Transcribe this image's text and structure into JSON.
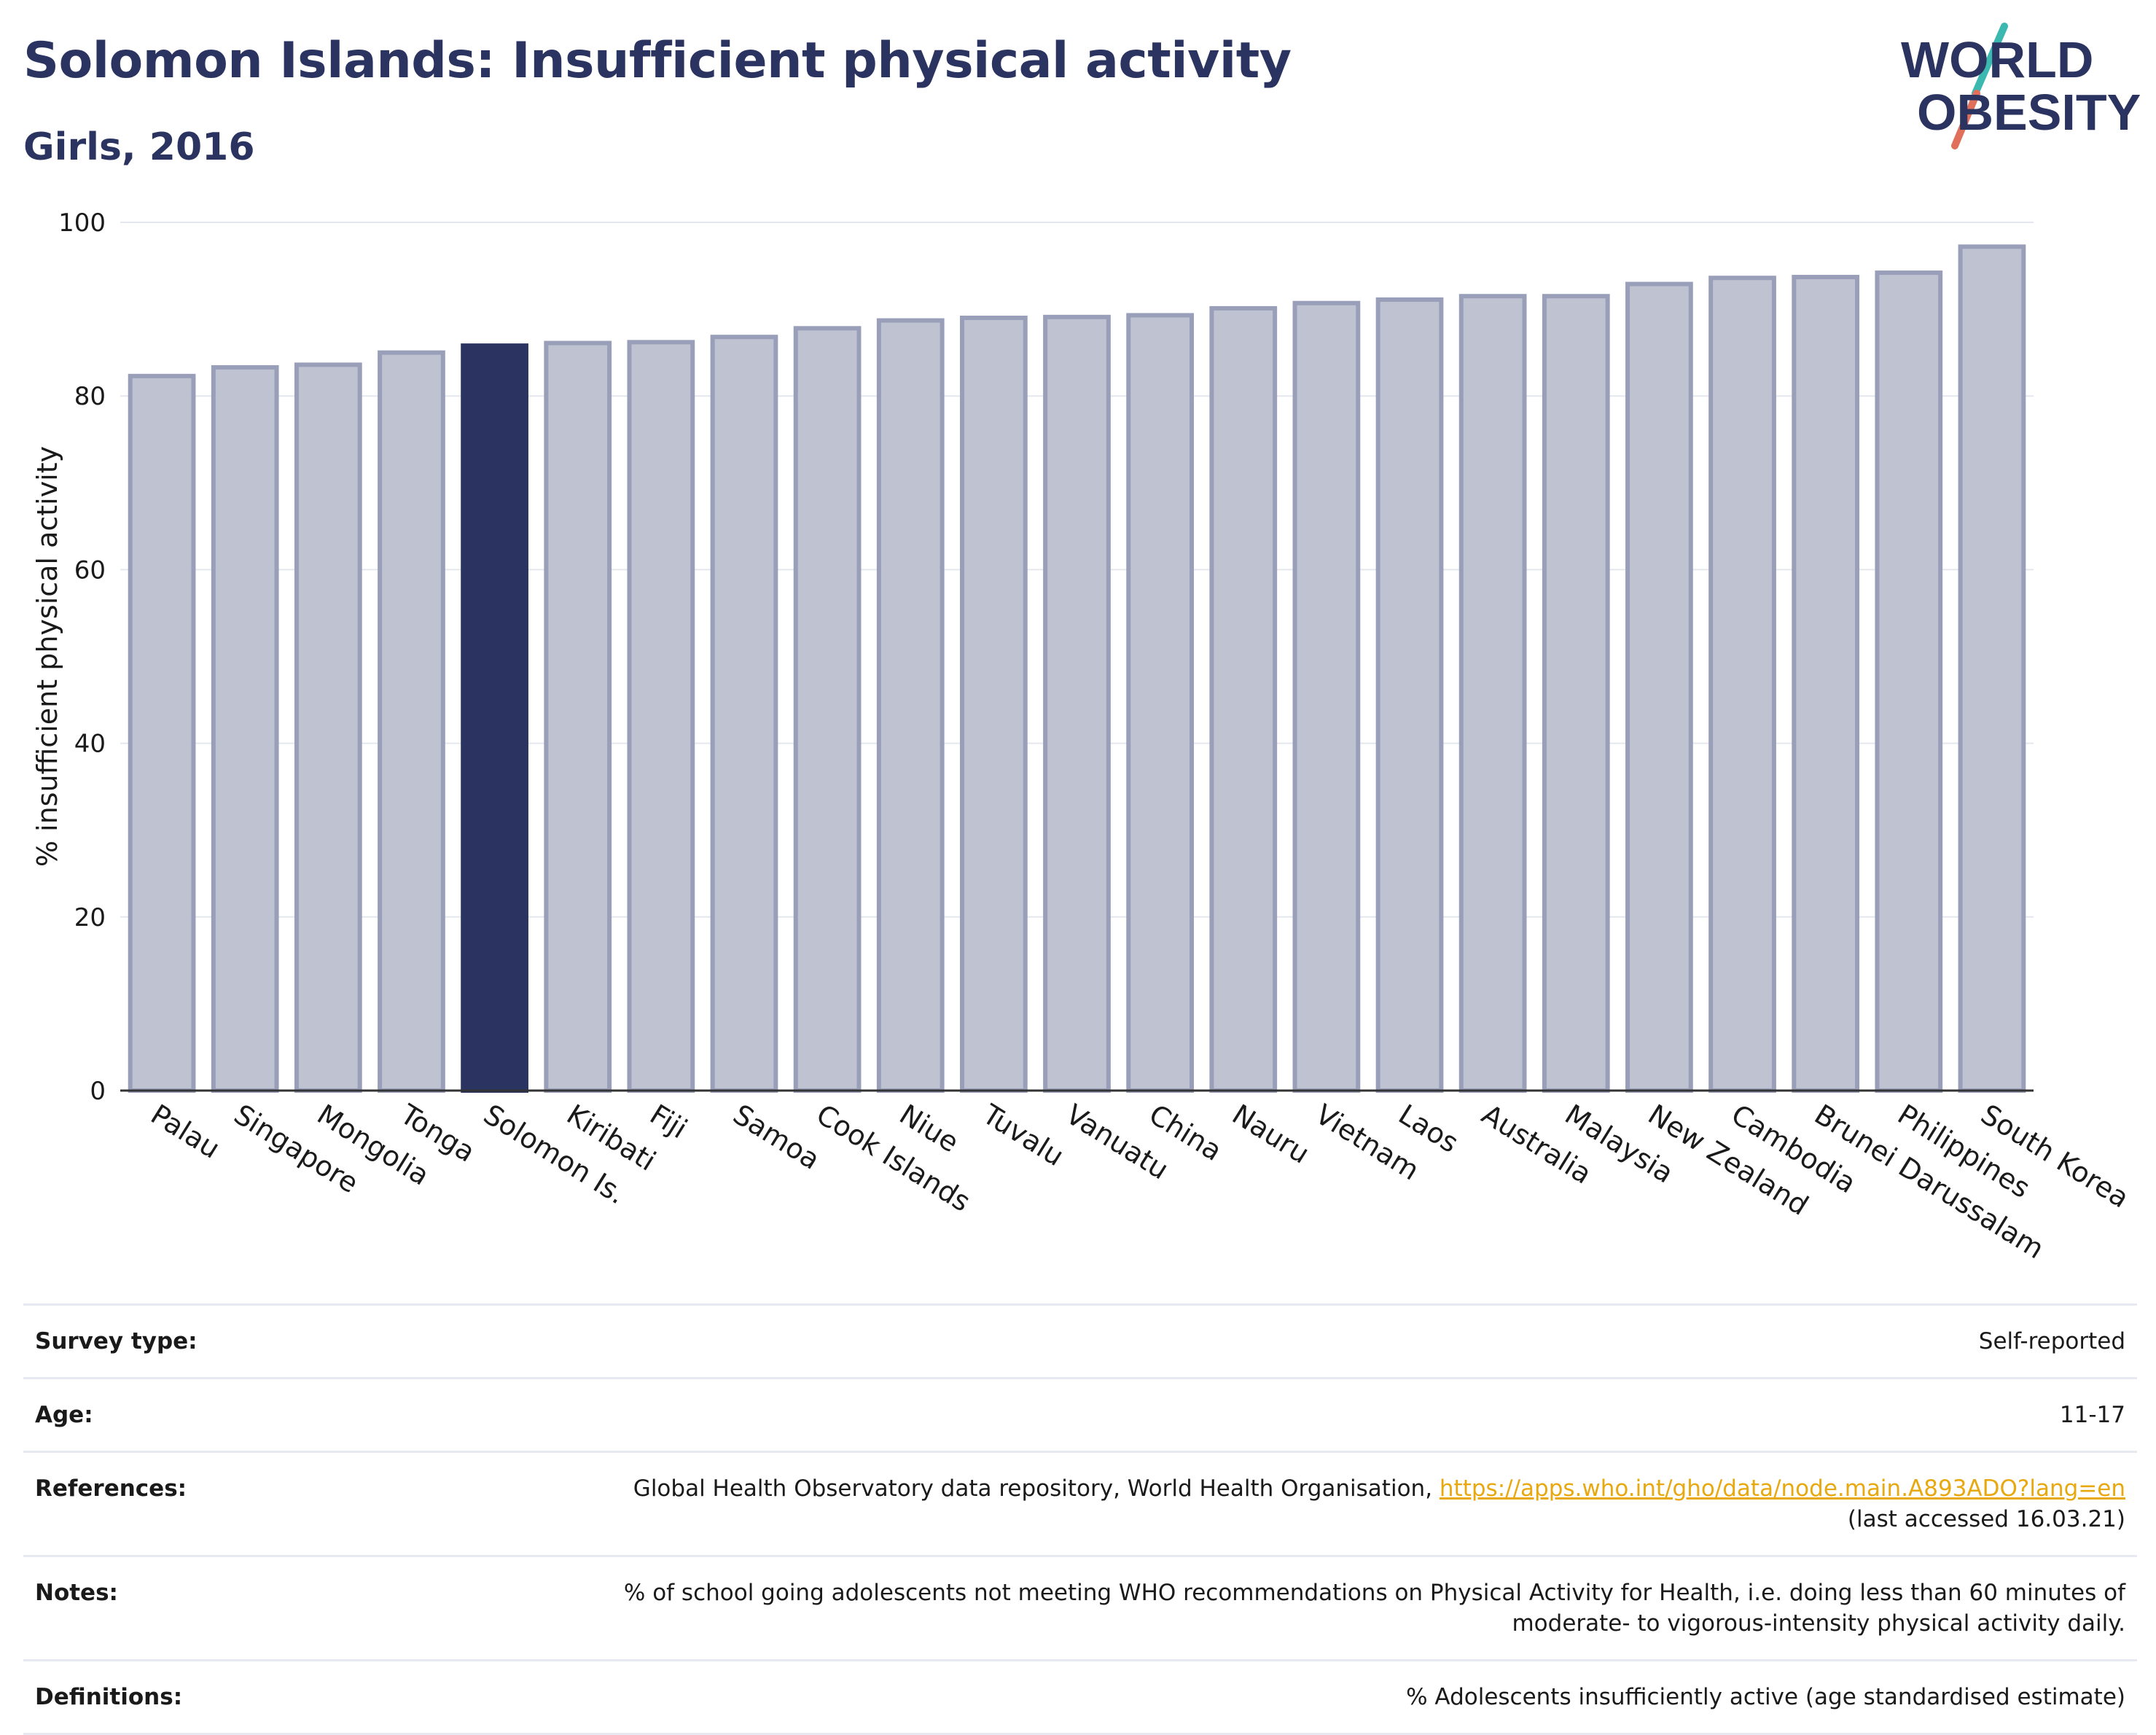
{
  "header": {
    "title": "Solomon Islands: Insufficient physical activity",
    "subtitle": "Girls, 2016"
  },
  "logo": {
    "line1": "WORLD",
    "line2": "OBESITY"
  },
  "colors": {
    "highlight": "#2b3460",
    "bar_fill": "#bfc2d1",
    "bar_stroke": "#9a9fb9",
    "title": "#2b3460",
    "link": "#e8a810"
  },
  "chart_data": {
    "type": "bar",
    "title": "Solomon Islands: Insufficient physical activity",
    "subtitle": "Girls, 2016",
    "xlabel": "",
    "ylabel": "% insufficient physical activity",
    "ylim": [
      0,
      100
    ],
    "yticks": [
      0,
      20,
      40,
      60,
      80,
      100
    ],
    "grid": true,
    "highlight": "Solomon Is.",
    "categories": [
      "Palau",
      "Singapore",
      "Mongolia",
      "Tonga",
      "Solomon Is.",
      "Kiribati",
      "Fiji",
      "Samoa",
      "Cook Islands",
      "Niue",
      "Tuvalu",
      "Vanuatu",
      "China",
      "Nauru",
      "Vietnam",
      "Laos",
      "Australia",
      "Malaysia",
      "New Zealand",
      "Cambodia",
      "Brunei Darussalam",
      "Philippines",
      "South Korea"
    ],
    "values": [
      82.3,
      83.3,
      83.6,
      85.0,
      85.8,
      86.1,
      86.2,
      86.8,
      87.8,
      88.7,
      89.0,
      89.1,
      89.3,
      90.1,
      90.7,
      91.1,
      91.5,
      91.5,
      92.9,
      93.6,
      93.7,
      94.2,
      97.2
    ]
  },
  "meta": {
    "survey_type": {
      "label": "Survey type:",
      "value": "Self-reported"
    },
    "age": {
      "label": "Age:",
      "value": "11-17"
    },
    "references": {
      "label": "References:",
      "text": "Global Health Observatory data repository, World Health Organisation, ",
      "link": "https://apps.who.int/gho/data/node.main.A893ADO?lang=en",
      "accessed": "(last accessed 16.03.21)"
    },
    "notes": {
      "label": "Notes:",
      "line1": "% of school going adolescents not meeting WHO recommendations on Physical Activity for Health, i.e. doing less than 60 minutes of",
      "line2": "moderate- to vigorous-intensity physical activity daily."
    },
    "definitions": {
      "label": "Definitions:",
      "value": "% Adolescents insufficiently active (age standardised estimate)"
    }
  }
}
